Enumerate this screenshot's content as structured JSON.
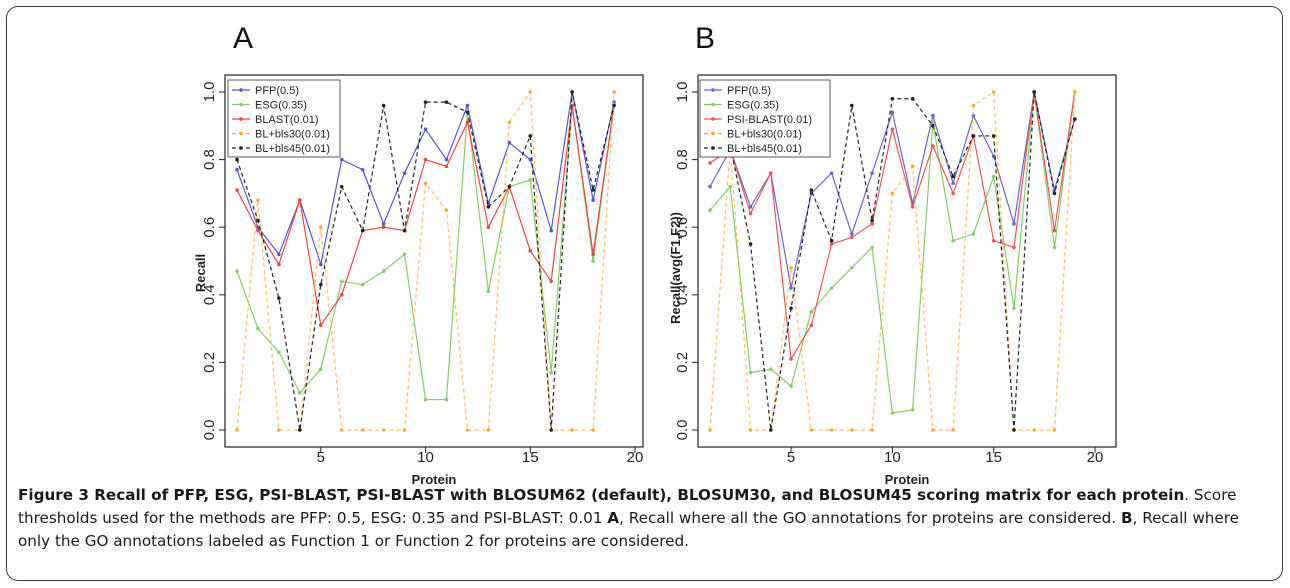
{
  "chart_data": [
    {
      "type": "line",
      "panel_label": "A",
      "xlabel": "Protein",
      "ylabel": "Recall",
      "xlim": [
        1,
        20
      ],
      "ylim": [
        0,
        1
      ],
      "x_ticks": [
        5,
        10,
        15,
        20
      ],
      "y_ticks": [
        0.0,
        0.2,
        0.4,
        0.6,
        0.8,
        1.0
      ],
      "y_tick_labels": [
        "0.0",
        "0.2",
        "0.4",
        "0.6",
        "0.8",
        "1.0"
      ],
      "legend_position": "top-left",
      "x": [
        1,
        2,
        3,
        4,
        5,
        6,
        7,
        8,
        9,
        10,
        11,
        12,
        13,
        14,
        15,
        16,
        17,
        18,
        19
      ],
      "series": [
        {
          "name": "PFP(0.5)",
          "color": "#5555cc",
          "dash": "solid",
          "values": [
            0.77,
            0.6,
            0.52,
            0.68,
            0.49,
            0.8,
            0.77,
            0.61,
            0.76,
            0.89,
            0.8,
            0.96,
            0.67,
            0.85,
            0.8,
            0.59,
            1.0,
            0.68,
            0.97
          ]
        },
        {
          "name": "ESG(0.35)",
          "color": "#88cc66",
          "dash": "solid",
          "values": [
            0.47,
            0.3,
            0.23,
            0.11,
            0.18,
            0.44,
            0.43,
            0.47,
            0.52,
            0.09,
            0.09,
            0.94,
            0.41,
            0.72,
            0.74,
            0.17,
            0.96,
            0.5,
            0.96
          ]
        },
        {
          "name": "BLAST(0.01)",
          "color": "#ee4444",
          "dash": "solid",
          "values": [
            0.71,
            0.59,
            0.49,
            0.68,
            0.31,
            0.4,
            0.59,
            0.6,
            0.59,
            0.8,
            0.78,
            0.91,
            0.6,
            0.72,
            0.53,
            0.44,
            0.96,
            0.52,
            0.96
          ]
        },
        {
          "name": "BL+bls30(0.01)",
          "color": "#ffaa33",
          "dash": "dashed",
          "values": [
            0.0,
            0.68,
            0.0,
            0.0,
            0.6,
            0.0,
            0.0,
            0.0,
            0.0,
            0.73,
            0.65,
            0.0,
            0.0,
            0.91,
            1.0,
            0.0,
            0.0,
            0.0,
            1.0
          ]
        },
        {
          "name": "BL+bls45(0.01)",
          "color": "#222222",
          "dash": "dashed",
          "values": [
            0.8,
            0.62,
            0.39,
            0.0,
            0.43,
            0.72,
            0.59,
            0.96,
            0.59,
            0.97,
            0.97,
            0.94,
            0.66,
            0.72,
            0.87,
            0.0,
            1.0,
            0.71,
            0.96
          ]
        }
      ]
    },
    {
      "type": "line",
      "panel_label": "B",
      "xlabel": "Protein",
      "ylabel": "Recall(avg(F1,F2))",
      "xlim": [
        1,
        20
      ],
      "ylim": [
        0,
        1
      ],
      "x_ticks": [
        5,
        10,
        15,
        20
      ],
      "y_ticks": [
        0.0,
        0.2,
        0.4,
        0.6,
        0.8,
        1.0
      ],
      "y_tick_labels": [
        "0.0",
        "0.2",
        "0.4",
        "0.6",
        "0.8",
        "1.0"
      ],
      "legend_position": "top-left",
      "x": [
        1,
        2,
        3,
        4,
        5,
        6,
        7,
        8,
        9,
        10,
        11,
        12,
        13,
        14,
        15,
        16,
        17,
        18,
        19
      ],
      "series": [
        {
          "name": "PFP(0.5)",
          "color": "#6666cc",
          "dash": "solid",
          "values": [
            0.72,
            0.83,
            0.66,
            0.76,
            0.42,
            0.7,
            0.76,
            0.58,
            0.76,
            0.94,
            0.67,
            0.93,
            0.73,
            0.93,
            0.81,
            0.61,
            1.0,
            0.71,
            0.92
          ]
        },
        {
          "name": "ESG(0.35)",
          "color": "#88cc66",
          "dash": "solid",
          "values": [
            0.65,
            0.72,
            0.17,
            0.18,
            0.13,
            0.35,
            0.42,
            0.48,
            0.54,
            0.05,
            0.06,
            0.91,
            0.56,
            0.58,
            0.75,
            0.36,
            1.0,
            0.54,
            1.0
          ]
        },
        {
          "name": "PSI-BLAST(0.01)",
          "color": "#ee5555",
          "dash": "solid",
          "values": [
            0.79,
            0.83,
            0.64,
            0.76,
            0.21,
            0.31,
            0.55,
            0.57,
            0.61,
            0.89,
            0.66,
            0.84,
            0.7,
            0.87,
            0.56,
            0.54,
            1.0,
            0.59,
            1.0
          ]
        },
        {
          "name": "BL+bls30(0.01)",
          "color": "#ffaa33",
          "dash": "dashed",
          "values": [
            0.0,
            0.84,
            0.0,
            0.0,
            0.48,
            0.0,
            0.0,
            0.0,
            0.0,
            0.7,
            0.78,
            0.0,
            0.0,
            0.96,
            1.0,
            0.0,
            0.0,
            0.0,
            1.0
          ]
        },
        {
          "name": "BL+bls45(0.01)",
          "color": "#222222",
          "dash": "dashed",
          "values": [
            0.84,
            0.84,
            0.55,
            0.0,
            0.36,
            0.71,
            0.56,
            0.96,
            0.62,
            0.98,
            0.98,
            0.9,
            0.75,
            0.87,
            0.87,
            0.0,
            1.0,
            0.7,
            0.92
          ]
        }
      ]
    }
  ],
  "caption": {
    "lead": "Figure 3 Recall of PFP, ESG, PSI-BLAST, PSI-BLAST with BLOSUM62 (default), BLOSUM30, and BLOSUM45 scoring matrix for each protein",
    "rest1": ". Score thresholds used for the methods are PFP: 0.5, ESG: 0.35 and PSI-BLAST: 0.01 ",
    "labelA": "A",
    "textA": ", Recall where all the GO annotations for proteins are considered. ",
    "labelB": "B",
    "textB": ", Recall where only the GO annotations labeled as Function 1 or Function 2 for proteins are considered."
  }
}
